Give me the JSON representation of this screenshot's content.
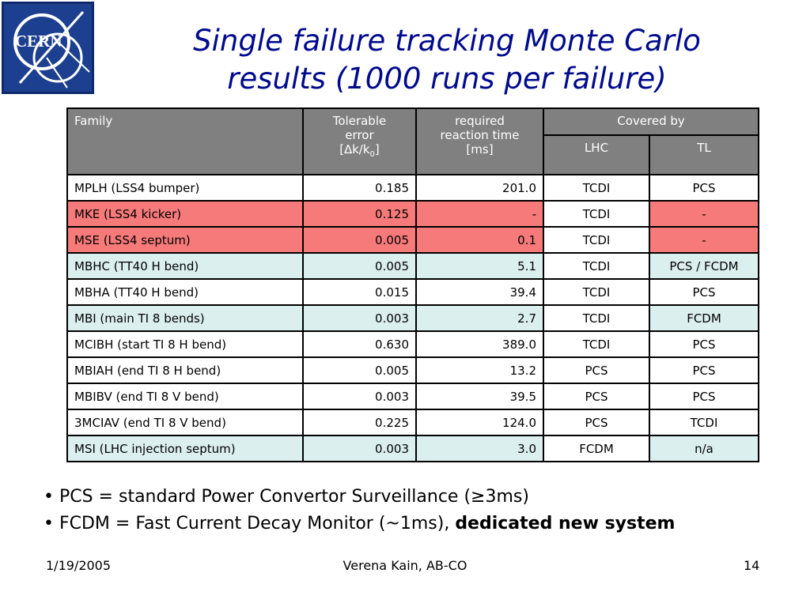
{
  "logo": {
    "text": "CERN"
  },
  "title": {
    "line1": "Single failure tracking Monte Carlo",
    "line2": "results (1000 runs per failure)"
  },
  "table": {
    "headers": {
      "family": "Family",
      "tolerable_line1": "Tolerable",
      "tolerable_line2": "error",
      "tolerable_unit_open": "[",
      "tolerable_unit_delta": "∆",
      "tolerable_unit_k": "k/k",
      "tolerable_unit_sub": "0",
      "tolerable_unit_close": "]",
      "required_line1": "required",
      "required_line2": "reaction time",
      "required_unit": "[ms]",
      "covered_by": "Covered by",
      "lhc": "LHC",
      "tl": "TL"
    },
    "rows": [
      {
        "family": "MPLH (LSS4 bumper)",
        "error": "0.185",
        "time": "201.0",
        "lhc": "TCDI",
        "tl": "PCS",
        "color": "white"
      },
      {
        "family": "MKE (LSS4 kicker)",
        "error": "0.125",
        "time": "-",
        "lhc": "TCDI",
        "tl": "-",
        "color": "red"
      },
      {
        "family": "MSE (LSS4 septum)",
        "error": "0.005",
        "time": "0.1",
        "lhc": "TCDI",
        "tl": "-",
        "color": "red"
      },
      {
        "family": "MBHC (TT40 H bend)",
        "error": "0.005",
        "time": "5.1",
        "lhc": "TCDI",
        "tl": "PCS / FCDM",
        "color": "blue"
      },
      {
        "family": "MBHA (TT40 H bend)",
        "error": "0.015",
        "time": "39.4",
        "lhc": "TCDI",
        "tl": "PCS",
        "color": "white"
      },
      {
        "family": "MBI (main TI 8 bends)",
        "error": "0.003",
        "time": "2.7",
        "lhc": "TCDI",
        "tl": "FCDM",
        "color": "blue"
      },
      {
        "family": "MCIBH (start TI 8 H bend)",
        "error": "0.630",
        "time": "389.0",
        "lhc": "TCDI",
        "tl": "PCS",
        "color": "white"
      },
      {
        "family": "MBIAH (end TI 8 H bend)",
        "error": "0.005",
        "time": "13.2",
        "lhc": "PCS",
        "tl": "PCS",
        "color": "white"
      },
      {
        "family": "MBIBV (end TI 8 V bend)",
        "error": "0.003",
        "time": "39.5",
        "lhc": "PCS",
        "tl": "PCS",
        "color": "white"
      },
      {
        "family": "3MCIAV (end TI 8 V bend)",
        "error": "0.225",
        "time": "124.0",
        "lhc": "PCS",
        "tl": "TCDI",
        "color": "white"
      },
      {
        "family": "MSI (LHC injection septum)",
        "error": "0.003",
        "time": "3.0",
        "lhc": "FCDM",
        "tl": "n/a",
        "color": "blue"
      }
    ]
  },
  "notes": {
    "line1": "• PCS = standard Power Convertor Surveillance (≥3ms)",
    "line2_prefix": "• FCDM = Fast Current Decay Monitor (~1ms), ",
    "line2_bold": "dedicated new system"
  },
  "footer": {
    "date": "1/19/2005",
    "author": "Verena Kain, AB-CO",
    "page": "14"
  },
  "colors": {
    "title": "#000a8c",
    "header_bg": "#808080",
    "row_red": "#f77a7a",
    "row_blue": "#dcefef",
    "logo_bg": "#1c3f8f"
  }
}
